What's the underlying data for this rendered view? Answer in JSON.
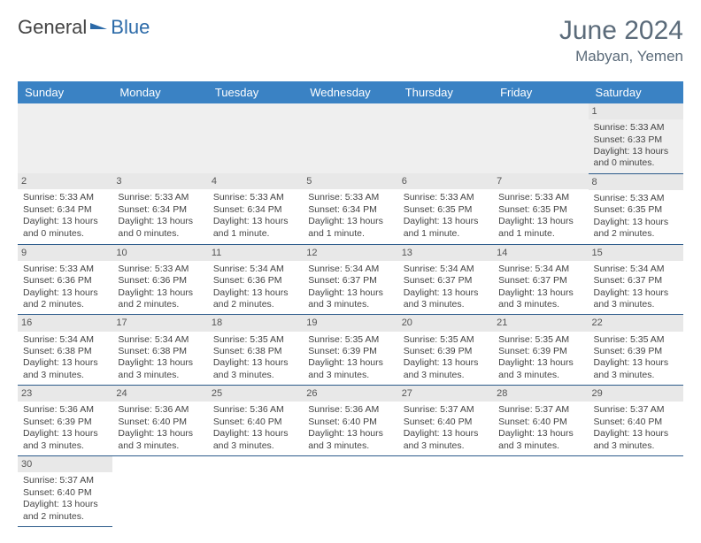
{
  "brand": {
    "part1": "General",
    "part2": "Blue",
    "accent_color": "#2b6aa8"
  },
  "title": {
    "month": "June 2024",
    "location": "Mabyan, Yemen"
  },
  "colors": {
    "header_bg": "#3a82c4",
    "header_text": "#ffffff",
    "daynum_bg": "#e8e8e8",
    "cell_border": "#2b5a8a",
    "text": "#444444",
    "title_color": "#5b6b7a"
  },
  "calendar": {
    "weekdays": [
      "Sunday",
      "Monday",
      "Tuesday",
      "Wednesday",
      "Thursday",
      "Friday",
      "Saturday"
    ],
    "first_weekday_index": 6,
    "days": [
      {
        "n": 1,
        "sunrise": "5:33 AM",
        "sunset": "6:33 PM",
        "daylight": "13 hours and 0 minutes."
      },
      {
        "n": 2,
        "sunrise": "5:33 AM",
        "sunset": "6:34 PM",
        "daylight": "13 hours and 0 minutes."
      },
      {
        "n": 3,
        "sunrise": "5:33 AM",
        "sunset": "6:34 PM",
        "daylight": "13 hours and 0 minutes."
      },
      {
        "n": 4,
        "sunrise": "5:33 AM",
        "sunset": "6:34 PM",
        "daylight": "13 hours and 1 minute."
      },
      {
        "n": 5,
        "sunrise": "5:33 AM",
        "sunset": "6:34 PM",
        "daylight": "13 hours and 1 minute."
      },
      {
        "n": 6,
        "sunrise": "5:33 AM",
        "sunset": "6:35 PM",
        "daylight": "13 hours and 1 minute."
      },
      {
        "n": 7,
        "sunrise": "5:33 AM",
        "sunset": "6:35 PM",
        "daylight": "13 hours and 1 minute."
      },
      {
        "n": 8,
        "sunrise": "5:33 AM",
        "sunset": "6:35 PM",
        "daylight": "13 hours and 2 minutes."
      },
      {
        "n": 9,
        "sunrise": "5:33 AM",
        "sunset": "6:36 PM",
        "daylight": "13 hours and 2 minutes."
      },
      {
        "n": 10,
        "sunrise": "5:33 AM",
        "sunset": "6:36 PM",
        "daylight": "13 hours and 2 minutes."
      },
      {
        "n": 11,
        "sunrise": "5:34 AM",
        "sunset": "6:36 PM",
        "daylight": "13 hours and 2 minutes."
      },
      {
        "n": 12,
        "sunrise": "5:34 AM",
        "sunset": "6:37 PM",
        "daylight": "13 hours and 3 minutes."
      },
      {
        "n": 13,
        "sunrise": "5:34 AM",
        "sunset": "6:37 PM",
        "daylight": "13 hours and 3 minutes."
      },
      {
        "n": 14,
        "sunrise": "5:34 AM",
        "sunset": "6:37 PM",
        "daylight": "13 hours and 3 minutes."
      },
      {
        "n": 15,
        "sunrise": "5:34 AM",
        "sunset": "6:37 PM",
        "daylight": "13 hours and 3 minutes."
      },
      {
        "n": 16,
        "sunrise": "5:34 AM",
        "sunset": "6:38 PM",
        "daylight": "13 hours and 3 minutes."
      },
      {
        "n": 17,
        "sunrise": "5:34 AM",
        "sunset": "6:38 PM",
        "daylight": "13 hours and 3 minutes."
      },
      {
        "n": 18,
        "sunrise": "5:35 AM",
        "sunset": "6:38 PM",
        "daylight": "13 hours and 3 minutes."
      },
      {
        "n": 19,
        "sunrise": "5:35 AM",
        "sunset": "6:39 PM",
        "daylight": "13 hours and 3 minutes."
      },
      {
        "n": 20,
        "sunrise": "5:35 AM",
        "sunset": "6:39 PM",
        "daylight": "13 hours and 3 minutes."
      },
      {
        "n": 21,
        "sunrise": "5:35 AM",
        "sunset": "6:39 PM",
        "daylight": "13 hours and 3 minutes."
      },
      {
        "n": 22,
        "sunrise": "5:35 AM",
        "sunset": "6:39 PM",
        "daylight": "13 hours and 3 minutes."
      },
      {
        "n": 23,
        "sunrise": "5:36 AM",
        "sunset": "6:39 PM",
        "daylight": "13 hours and 3 minutes."
      },
      {
        "n": 24,
        "sunrise": "5:36 AM",
        "sunset": "6:40 PM",
        "daylight": "13 hours and 3 minutes."
      },
      {
        "n": 25,
        "sunrise": "5:36 AM",
        "sunset": "6:40 PM",
        "daylight": "13 hours and 3 minutes."
      },
      {
        "n": 26,
        "sunrise": "5:36 AM",
        "sunset": "6:40 PM",
        "daylight": "13 hours and 3 minutes."
      },
      {
        "n": 27,
        "sunrise": "5:37 AM",
        "sunset": "6:40 PM",
        "daylight": "13 hours and 3 minutes."
      },
      {
        "n": 28,
        "sunrise": "5:37 AM",
        "sunset": "6:40 PM",
        "daylight": "13 hours and 3 minutes."
      },
      {
        "n": 29,
        "sunrise": "5:37 AM",
        "sunset": "6:40 PM",
        "daylight": "13 hours and 3 minutes."
      },
      {
        "n": 30,
        "sunrise": "5:37 AM",
        "sunset": "6:40 PM",
        "daylight": "13 hours and 2 minutes."
      }
    ],
    "labels": {
      "sunrise": "Sunrise:",
      "sunset": "Sunset:",
      "daylight": "Daylight:"
    }
  }
}
